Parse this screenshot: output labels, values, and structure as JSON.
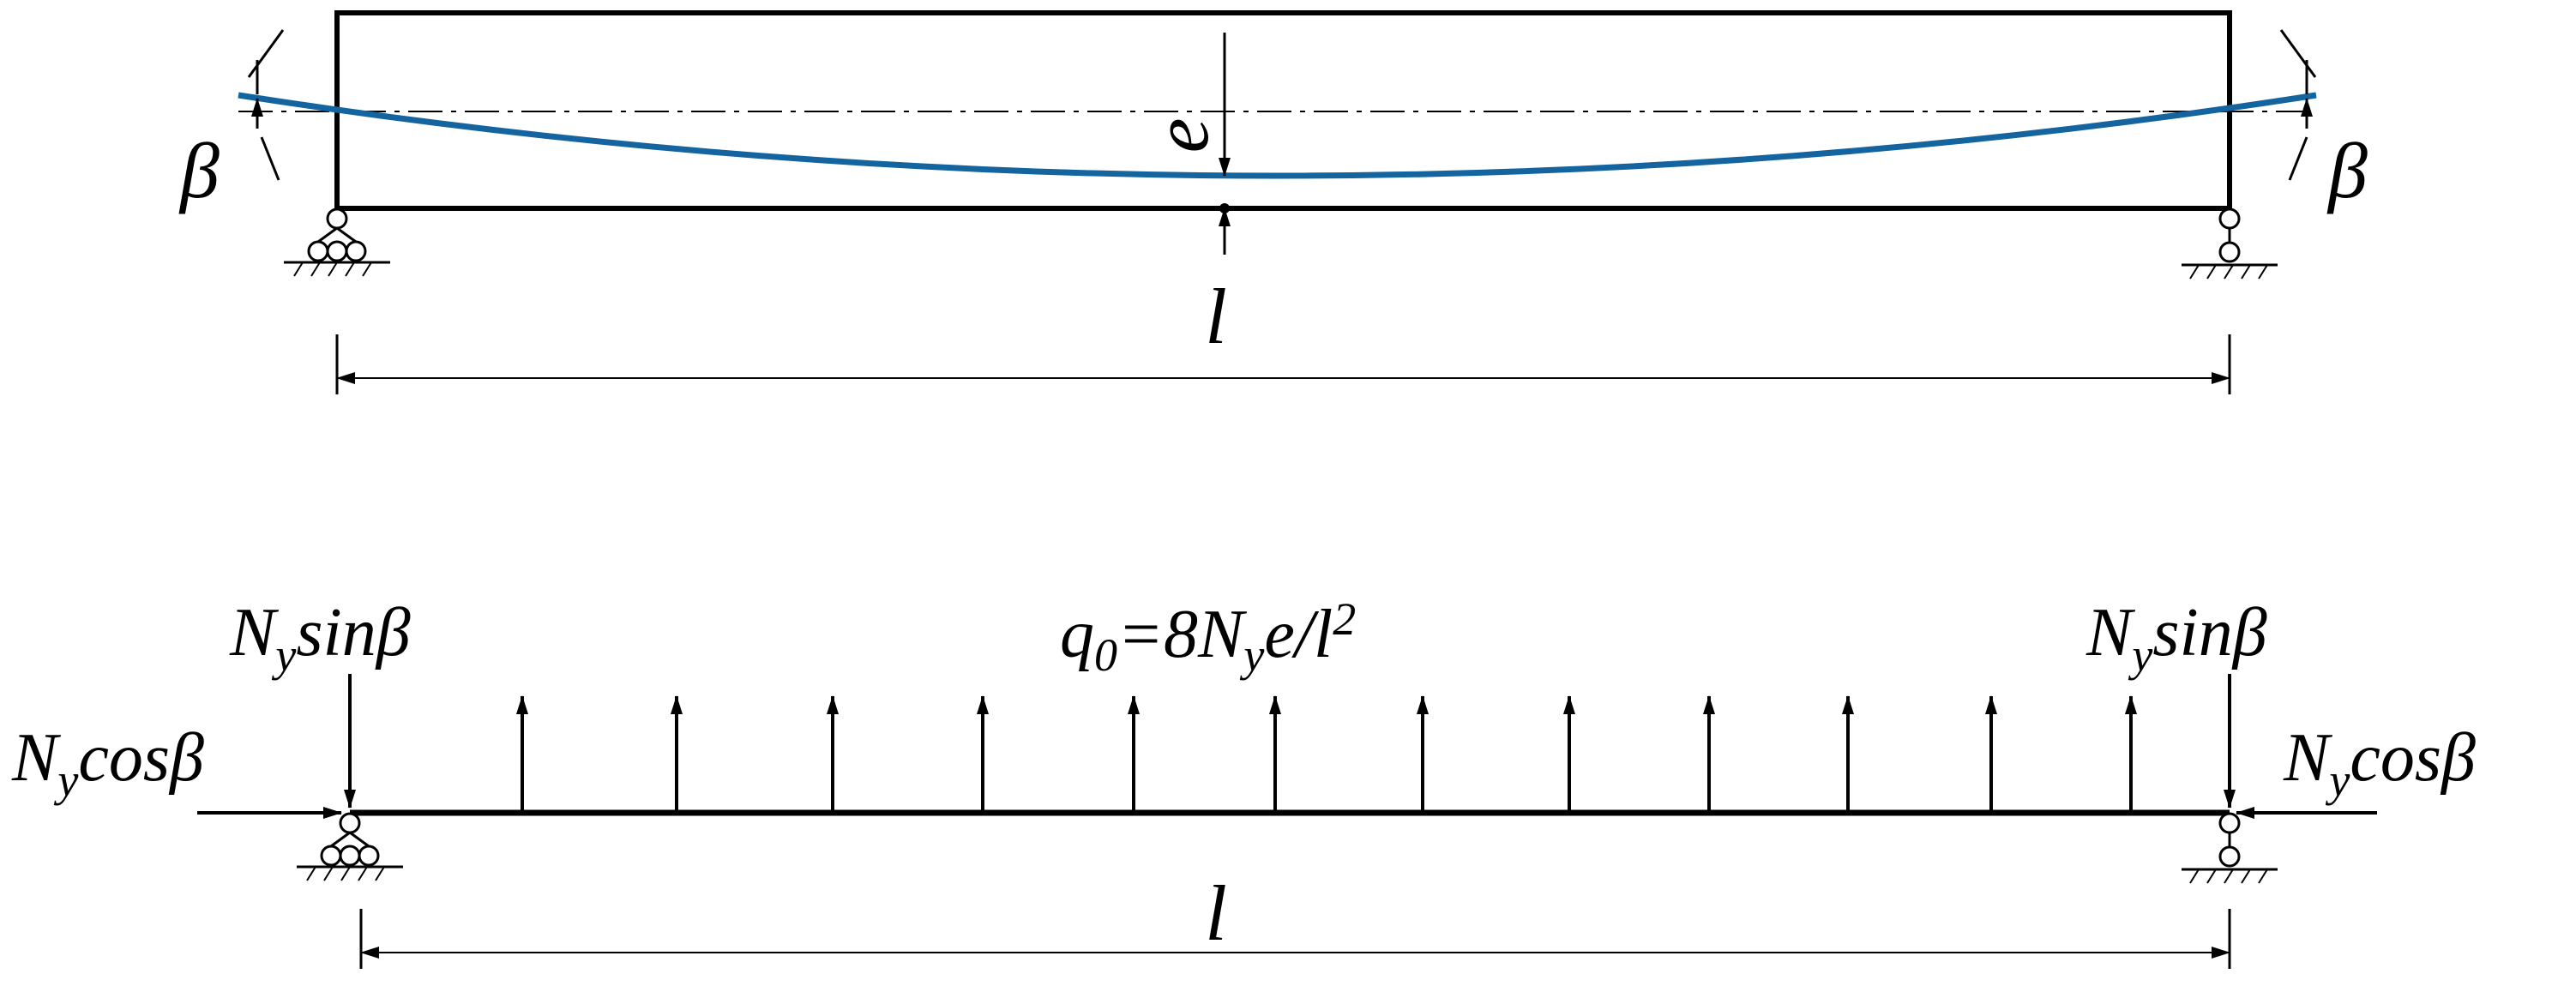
{
  "top_beam": {
    "angle_left": "β",
    "angle_right": "β",
    "eccentricity": "e",
    "span": "l"
  },
  "bottom_beam": {
    "left_vertical": {
      "symbol": "N",
      "subscript": "y",
      "text": "sinβ"
    },
    "left_horizontal": {
      "symbol": "N",
      "subscript": "y",
      "text": "cosβ"
    },
    "right_vertical": {
      "symbol": "N",
      "subscript": "y",
      "text": "sinβ"
    },
    "right_horizontal": {
      "symbol": "N",
      "subscript": "y",
      "text": "cosβ"
    },
    "load": {
      "symbol": "q",
      "subscript": "0",
      "middle": "=8N",
      "subscript2": "y",
      "tail": "e/l",
      "superscript": "2"
    },
    "span": "l"
  }
}
